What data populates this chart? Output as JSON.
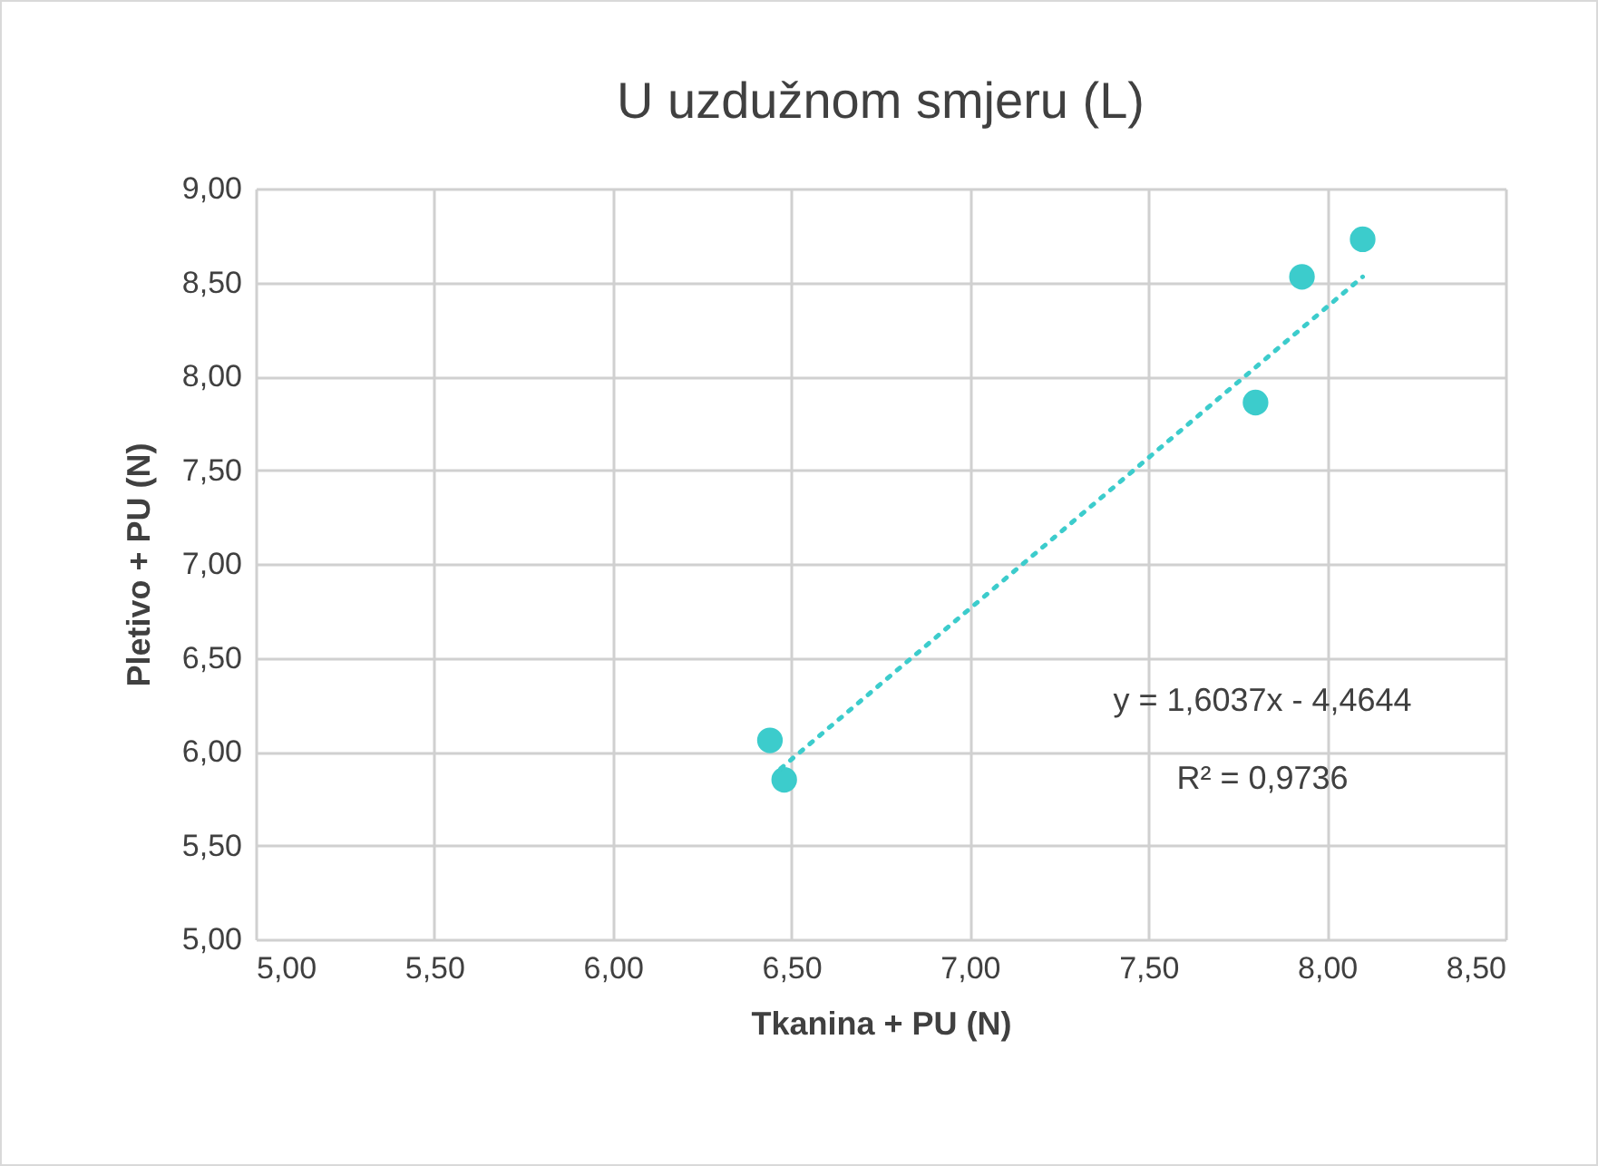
{
  "chart_data": {
    "type": "scatter",
    "title": "U uzdužnom smjeru (L)",
    "xlabel": "Tkanina + PU (N)",
    "ylabel": "Pletivo + PU (N)",
    "series": [
      {
        "color": "#3ccccc",
        "marker": "circle",
        "x": [
          6.44,
          6.48,
          7.8,
          7.93,
          8.1
        ],
        "values": [
          6.06,
          5.85,
          7.86,
          8.53,
          8.73
        ]
      },
      {
        "type": "line",
        "color": "#3ccccc",
        "marker": "none",
        "line_style": "dotted",
        "x": [
          6.47,
          8.1
        ],
        "values": [
          5.91,
          8.53
        ]
      }
    ],
    "xlim": [
      5,
      8.5
    ],
    "ylim": [
      5,
      9
    ],
    "xticks": [
      {
        "value": 5,
        "label": "5,00"
      },
      {
        "value": 5.5,
        "label": "5,50"
      },
      {
        "value": 6,
        "label": "6,00"
      },
      {
        "value": 6.5,
        "label": "6,50"
      },
      {
        "value": 7,
        "label": "7,00"
      },
      {
        "value": 7.5,
        "label": "7,50"
      },
      {
        "value": 8,
        "label": "8,00"
      },
      {
        "value": 8.5,
        "label": "8,50"
      }
    ],
    "yticks": [
      {
        "value": 5,
        "label": "5,00"
      },
      {
        "value": 5.5,
        "label": "5,50"
      },
      {
        "value": 6,
        "label": "6,00"
      },
      {
        "value": 6.5,
        "label": "6,50"
      },
      {
        "value": 7,
        "label": "7,00"
      },
      {
        "value": 7.5,
        "label": "7,50"
      },
      {
        "value": 8,
        "label": "8,00"
      },
      {
        "value": 8.5,
        "label": "8,50"
      },
      {
        "value": 9,
        "label": "9,00"
      }
    ],
    "grid": true,
    "annotations": [
      "y = 1,6037x - 4,4644",
      "R² = 0,9736"
    ]
  }
}
